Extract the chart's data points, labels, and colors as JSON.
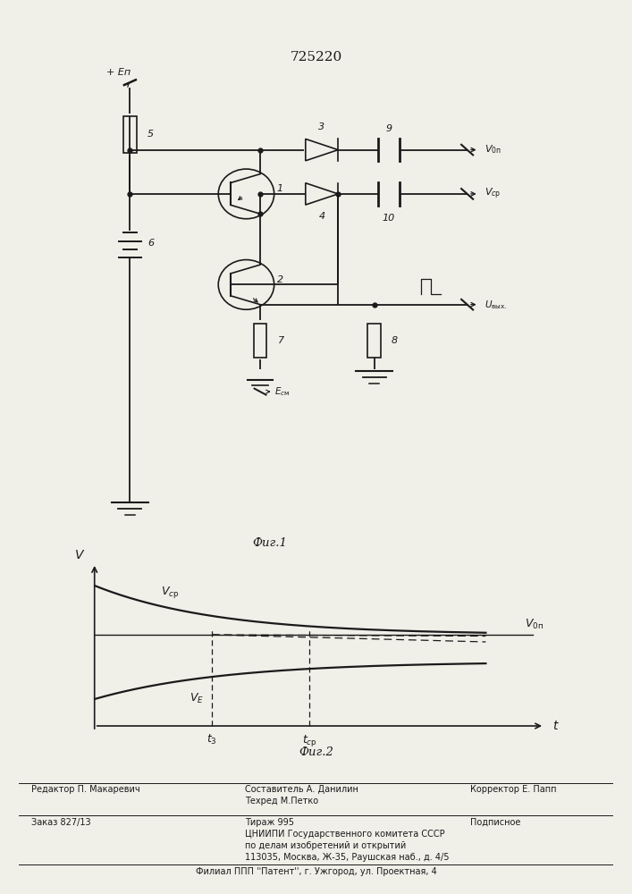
{
  "title": "725220",
  "fig1_caption": "Фиг.1",
  "fig2_caption": "Фиг.2",
  "bg_color": "#f0efe8",
  "line_color": "#1a1a1a",
  "graph2": {
    "t3": 0.3,
    "tcp": 0.55,
    "von_level": 0.3,
    "ve_level": -0.42
  }
}
